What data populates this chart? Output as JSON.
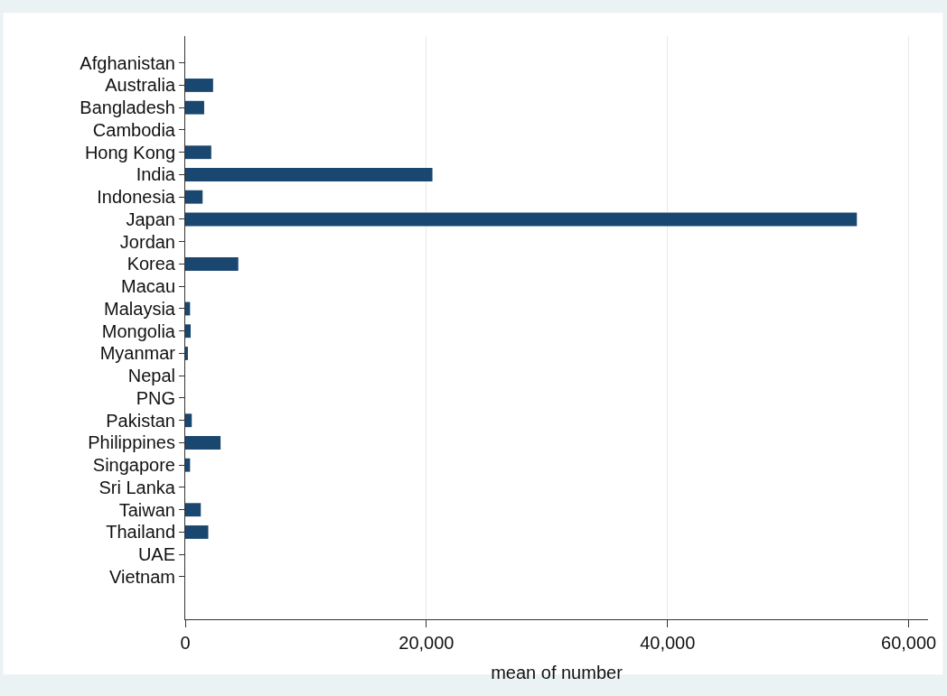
{
  "chart_data": {
    "type": "bar",
    "orientation": "horizontal",
    "xlabel": "mean of number",
    "categories": [
      "Afghanistan",
      "Australia",
      "Bangladesh",
      "Cambodia",
      "Hong Kong",
      "India",
      "Indonesia",
      "Japan",
      "Jordan",
      "Korea",
      "Macau",
      "Malaysia",
      "Mongolia",
      "Myanmar",
      "Nepal",
      "PNG",
      "Pakistan",
      "Philippines",
      "Singapore",
      "Sri Lanka",
      "Taiwan",
      "Thailand",
      "UAE",
      "Vietnam"
    ],
    "values": [
      0,
      2310,
      1570,
      0,
      2160,
      20500,
      1440,
      55700,
      0,
      4400,
      0,
      400,
      450,
      220,
      0,
      0,
      540,
      2930,
      400,
      0,
      1290,
      1910,
      0,
      0
    ],
    "color": "#1a476f",
    "xlim": [
      0,
      61600
    ],
    "xticks": [
      0,
      {
        "value": 20000,
        "label": "20,000"
      },
      {
        "value": 40000,
        "label": "40,000"
      },
      {
        "value": 60000,
        "label": "60,000"
      }
    ],
    "grid": "x"
  }
}
